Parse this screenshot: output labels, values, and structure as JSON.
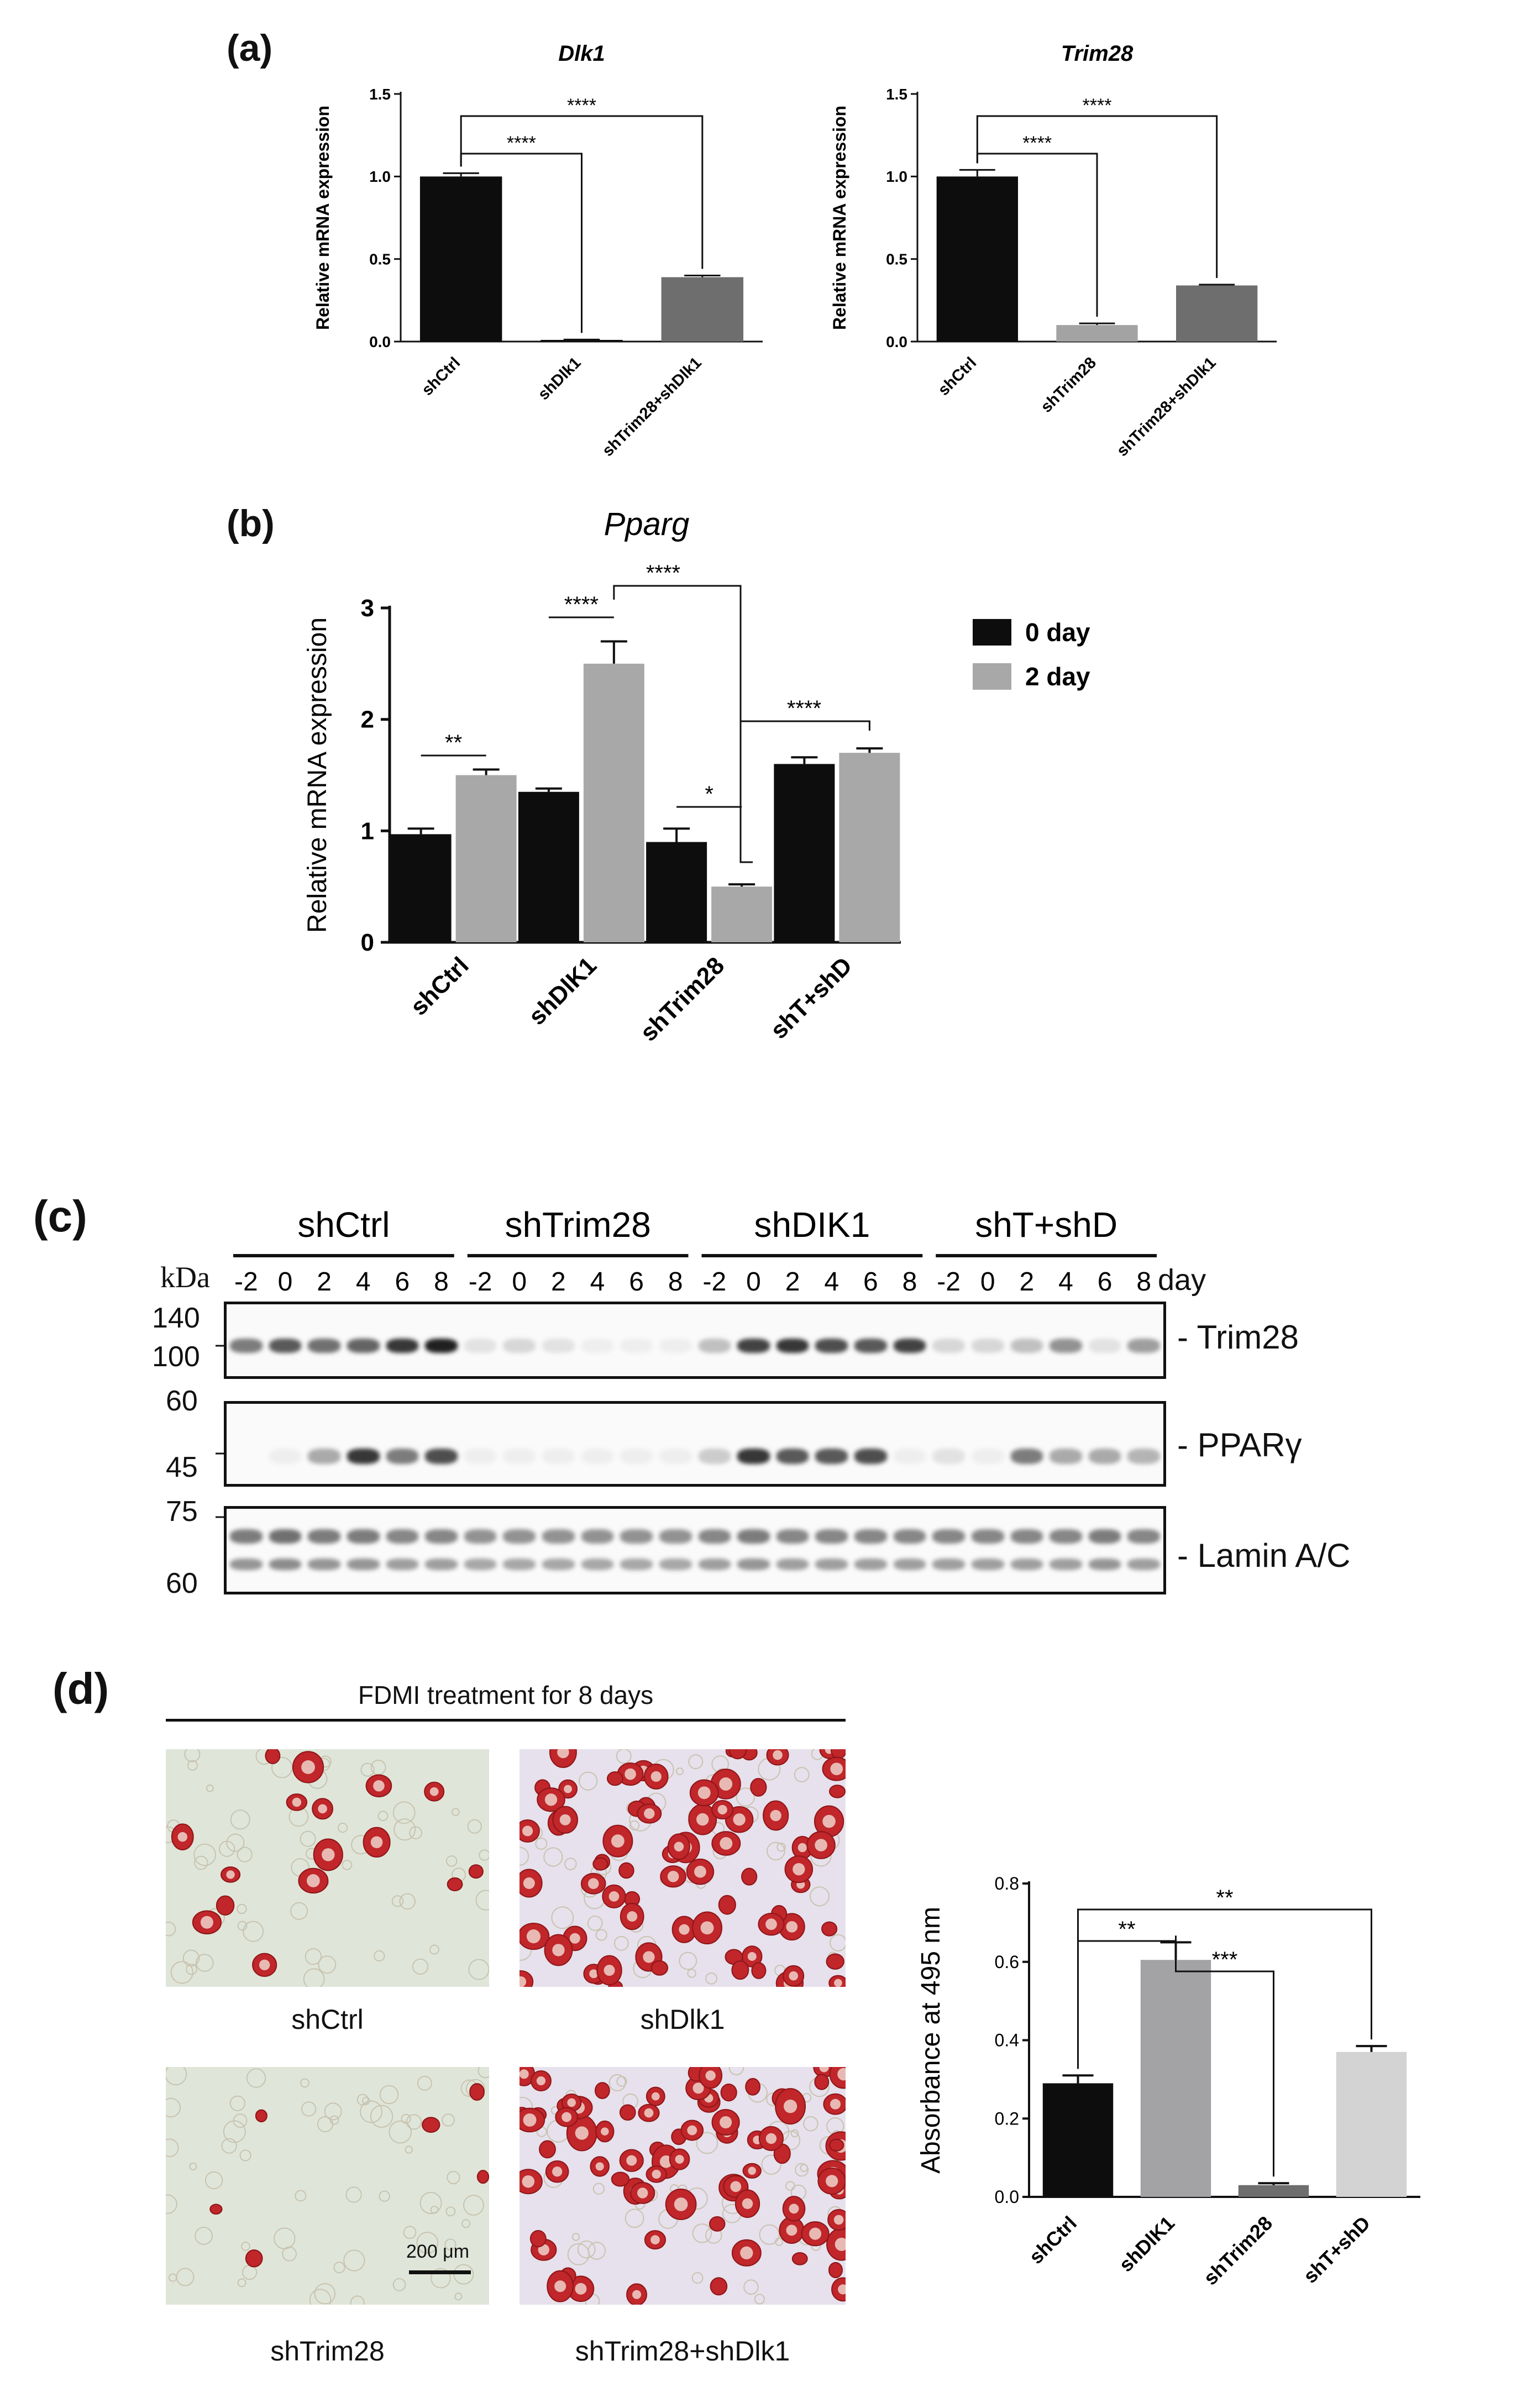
{
  "panel_labels": {
    "a": "(a)",
    "b": "(b)",
    "c": "(c)",
    "d": "(d)"
  },
  "colors": {
    "black": "#0d0d0d",
    "dark_gray": "#6e6e6e",
    "mid_gray": "#a3a3a3",
    "light_gray": "#d3d3d3",
    "bar_gray_b": "#a8a8a8",
    "red_stain": "#c0262a"
  },
  "chart_data": [
    {
      "id": "a1",
      "type": "bar",
      "title": "Dlk1",
      "ylabel": "Relative mRNA expression",
      "categories": [
        "shCtrl",
        "shDlk1",
        "shTrim28+shDlk1"
      ],
      "values": [
        1.0,
        0.01,
        0.39
      ],
      "errors": [
        0.02,
        0.002,
        0.01
      ],
      "colors": [
        "#0d0d0d",
        "#0d0d0d",
        "#6e6e6e"
      ],
      "ylim": [
        0,
        1.5
      ],
      "yticks": [
        0.0,
        0.5,
        1.0,
        1.5
      ],
      "yticklabels": [
        "0.0",
        "0.5",
        "1.0",
        "1.5"
      ],
      "significance": [
        {
          "from": 0,
          "to": 1,
          "label": "****"
        },
        {
          "from": 0,
          "to": 2,
          "label": "****"
        }
      ]
    },
    {
      "id": "a2",
      "type": "bar",
      "title": "Trim28",
      "ylabel": "Relative mRNA expression",
      "categories": [
        "shCtrl",
        "shTrim28",
        "shTrim28+shDlk1"
      ],
      "values": [
        1.0,
        0.1,
        0.34
      ],
      "errors": [
        0.04,
        0.01,
        0.005
      ],
      "colors": [
        "#0d0d0d",
        "#a3a3a3",
        "#6e6e6e"
      ],
      "ylim": [
        0,
        1.5
      ],
      "yticks": [
        0.0,
        0.5,
        1.0,
        1.5
      ],
      "yticklabels": [
        "0.0",
        "0.5",
        "1.0",
        "1.5"
      ],
      "significance": [
        {
          "from": 0,
          "to": 1,
          "label": "****"
        },
        {
          "from": 0,
          "to": 2,
          "label": "****"
        }
      ]
    },
    {
      "id": "b",
      "type": "bar",
      "title": "Pparg",
      "ylabel": "Relative mRNA expression",
      "categories": [
        "shCtrl",
        "shDlK1",
        "shTrim28",
        "shT+shD"
      ],
      "series": [
        {
          "name": "0 day",
          "color": "#0d0d0d",
          "values": [
            0.97,
            1.35,
            0.9,
            1.6
          ],
          "errors": [
            0.05,
            0.03,
            0.12,
            0.06
          ]
        },
        {
          "name": "2 day",
          "color": "#a8a8a8",
          "values": [
            1.5,
            2.5,
            0.5,
            1.7
          ],
          "errors": [
            0.05,
            0.2,
            0.02,
            0.04
          ]
        }
      ],
      "ylim": [
        0,
        3
      ],
      "yticks": [
        0,
        1,
        2,
        3
      ],
      "yticklabels": [
        "0",
        "1",
        "2",
        "3"
      ],
      "legend": "right",
      "significance": [
        {
          "label": "**",
          "type": "pair",
          "cat": 0
        },
        {
          "label": "****",
          "type": "pair",
          "cat": 1
        },
        {
          "label": "*",
          "type": "pair",
          "cat": 2
        },
        {
          "label": "****",
          "type": "cross",
          "from": [
            1,
            1
          ],
          "to": [
            2,
            1
          ]
        },
        {
          "label": "****",
          "type": "cross",
          "from": [
            2,
            1
          ],
          "to": [
            3,
            1
          ]
        }
      ]
    },
    {
      "id": "d",
      "type": "bar",
      "ylabel": "Absorbance at 495 nm",
      "categories": [
        "shCtrl",
        "shDlK1",
        "shTrim28",
        "shT+shD"
      ],
      "values": [
        0.29,
        0.605,
        0.03,
        0.37
      ],
      "errors": [
        0.02,
        0.045,
        0.005,
        0.015
      ],
      "colors": [
        "#0d0d0d",
        "#a3a3a6",
        "#6e6e6e",
        "#d3d3d3"
      ],
      "ylim": [
        0,
        0.8
      ],
      "yticks": [
        0.0,
        0.2,
        0.4,
        0.6,
        0.8
      ],
      "yticklabels": [
        "0.0",
        "0.2",
        "0.4",
        "0.6",
        "0.8"
      ],
      "significance": [
        {
          "from": 0,
          "to": 1,
          "label": "**"
        },
        {
          "from": 1,
          "to": 2,
          "label": "***"
        },
        {
          "from": 0,
          "to": 3,
          "label": "**"
        }
      ]
    }
  ],
  "western_blot": {
    "groups": [
      "shCtrl",
      "shTrim28",
      "shDIK1",
      "shT+shD"
    ],
    "unit": "kDa",
    "days": [
      "-2",
      "0",
      "2",
      "4",
      "6",
      "8"
    ],
    "day_label": "day",
    "proteins": [
      "- Trim28",
      "- PPARγ",
      "- Lamin A/C"
    ],
    "markers": [
      [
        "140",
        "100"
      ],
      [
        "60",
        "45"
      ],
      [
        "75",
        "60"
      ]
    ],
    "intensities": {
      "Trim28": [
        0.55,
        0.7,
        0.6,
        0.65,
        0.85,
        0.95,
        0.1,
        0.15,
        0.1,
        0.05,
        0.05,
        0.05,
        0.25,
        0.8,
        0.85,
        0.75,
        0.7,
        0.8,
        0.15,
        0.15,
        0.25,
        0.45,
        0.1,
        0.4
      ],
      "PPARg": [
        0.0,
        0.05,
        0.35,
        0.85,
        0.55,
        0.75,
        0.05,
        0.05,
        0.05,
        0.05,
        0.05,
        0.05,
        0.2,
        0.85,
        0.7,
        0.7,
        0.75,
        0.05,
        0.1,
        0.05,
        0.55,
        0.35,
        0.35,
        0.3
      ],
      "Lamin": [
        0.55,
        0.6,
        0.55,
        0.55,
        0.5,
        0.5,
        0.45,
        0.45,
        0.45,
        0.45,
        0.45,
        0.45,
        0.5,
        0.55,
        0.5,
        0.5,
        0.5,
        0.5,
        0.5,
        0.5,
        0.5,
        0.5,
        0.55,
        0.5
      ]
    }
  },
  "staining": {
    "header": "FDMI treatment for 8 days",
    "images": [
      {
        "caption": "shCtrl",
        "density": "low"
      },
      {
        "caption": "shDlk1",
        "density": "high"
      },
      {
        "caption": "shTrim28",
        "density": "very-low"
      },
      {
        "caption": "shTrim28+shDlk1",
        "density": "high"
      }
    ],
    "scale_bar": "200 μm"
  }
}
